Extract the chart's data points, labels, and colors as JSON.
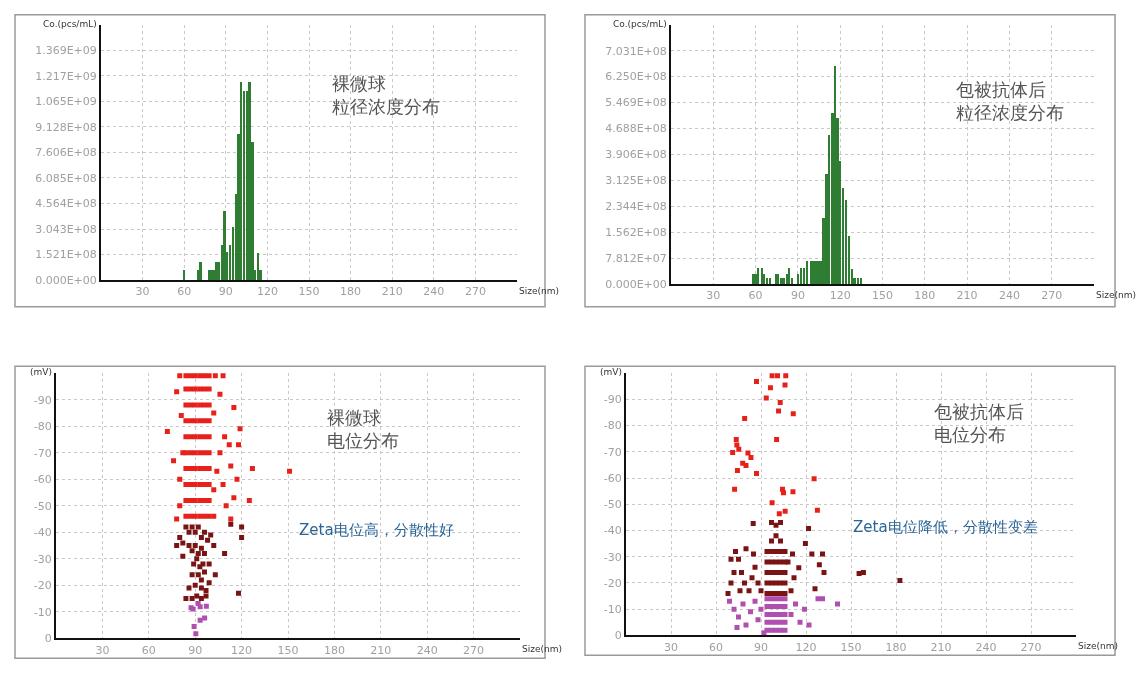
{
  "chart_data": [
    {
      "type": "bar",
      "title": "裸微球",
      "subtitle": "粒径浓度分布",
      "xlabel": "Size(nm)",
      "ylabel": "Co.(pcs/mL)",
      "color": "#2e7d32",
      "grid": true,
      "x": [
        60,
        70,
        72,
        78,
        79.7,
        81.3,
        83.5,
        85,
        87.3,
        89.2,
        91,
        93.3,
        95.4,
        97.4,
        99.3,
        101.2,
        103.1,
        105.3,
        107.2,
        109.4,
        111.3,
        113.4,
        115.3
      ],
      "values": [
        59000000.0,
        59000000.0,
        109000000.0,
        59000000.0,
        59000000.0,
        59000000.0,
        109000000.0,
        109000000.0,
        211000000.0,
        413000000.0,
        168000000.0,
        211000000.0,
        316000000.0,
        517000000.0,
        869000000.0,
        1183000000.0,
        1126000000.0,
        1126000000.0,
        1183000000.0,
        824000000.0,
        59000000.0,
        162000000.0,
        59000000.0
      ],
      "xlim": [
        0,
        300
      ],
      "xticks": [
        30,
        60,
        90,
        120,
        150,
        180,
        210,
        240,
        270
      ],
      "ylim": [
        0,
        1521000000.0
      ],
      "yticks": [
        {
          "value": 0,
          "label": "0.000E+00"
        },
        {
          "value": 152100000.0,
          "label": "1.521E+08"
        },
        {
          "value": 304300000.0,
          "label": "3.043E+08"
        },
        {
          "value": 456400000.0,
          "label": "4.564E+08"
        },
        {
          "value": 608500000.0,
          "label": "6.085E+08"
        },
        {
          "value": 760600000.0,
          "label": "7.606E+08"
        },
        {
          "value": 912800000.0,
          "label": "9.128E+08"
        },
        {
          "value": 1065000000.0,
          "label": "1.065E+09"
        },
        {
          "value": 1217000000.0,
          "label": "1.217E+09"
        },
        {
          "value": 1369000000.0,
          "label": "1.369E+09"
        }
      ]
    },
    {
      "type": "bar",
      "title": "包被抗体后",
      "subtitle": "粒径浓度分布",
      "xlabel": "Size(nm)",
      "ylabel": "Co.(pcs/mL)",
      "color": "#2e7d32",
      "grid": true,
      "x": [
        58.4,
        60.1,
        62,
        64.5,
        66.2,
        68.1,
        70.3,
        74.5,
        76.2,
        78.6,
        80.5,
        82.5,
        83.9,
        86.1,
        90.3,
        92.5,
        94.4,
        96.8,
        99.8,
        102,
        104,
        106.3,
        108.3,
        110.5,
        112.4,
        114.6,
        116.5,
        118.2,
        120.2,
        122.1,
        124.3,
        126.3,
        128.5,
        130.4,
        132.6,
        134.8
      ],
      "values": [
        31000000.0,
        31000000.0,
        48000000.0,
        48000000.0,
        31000000.0,
        20000000.0,
        20000000.0,
        31000000.0,
        31000000.0,
        20000000.0,
        20000000.0,
        31000000.0,
        48000000.0,
        20000000.0,
        31000000.0,
        48000000.0,
        48000000.0,
        70000000.0,
        70000000.0,
        70000000.0,
        70000000.0,
        70000000.0,
        201000000.0,
        332000000.0,
        449000000.0,
        515000000.0,
        658000000.0,
        500000000.0,
        370000000.0,
        291000000.0,
        253000000.0,
        147000000.0,
        47000000.0,
        20000000.0,
        20000000.0,
        20000000.0
      ],
      "xlim": [
        0,
        300
      ],
      "xticks": [
        30,
        60,
        90,
        120,
        150,
        180,
        210,
        240,
        270
      ],
      "ylim": [
        0,
        781200000.0
      ],
      "yticks": [
        {
          "value": 0,
          "label": "0.000E+00"
        },
        {
          "value": 78120000.0,
          "label": "7.812E+07"
        },
        {
          "value": 156200000.0,
          "label": "1.562E+08"
        },
        {
          "value": 234400000.0,
          "label": "2.344E+08"
        },
        {
          "value": 312500000.0,
          "label": "3.125E+08"
        },
        {
          "value": 390600000.0,
          "label": "3.906E+08"
        },
        {
          "value": 468800000.0,
          "label": "4.688E+08"
        },
        {
          "value": 546900000.0,
          "label": "5.469E+08"
        },
        {
          "value": 625000000.0,
          "label": "6.250E+08"
        },
        {
          "value": 703100000.0,
          "label": "7.031E+08"
        }
      ]
    },
    {
      "type": "scatter",
      "title": "裸微球",
      "subtitle": "电位分布",
      "annotations": [
        "Zeta电位高，分散性好"
      ],
      "xlabel": "Size(nm)",
      "ylabel": "(mV)",
      "marker": "square",
      "grid": true,
      "series": [
        {
          "color": "#e8201a",
          "x": [
            84,
            87,
            90,
            93,
            96,
            99,
            84,
            87,
            90,
            93,
            96,
            99,
            84,
            87,
            90,
            93,
            96,
            99,
            84,
            87,
            90,
            93,
            96,
            99,
            84,
            87,
            90,
            93,
            96,
            99,
            84,
            87,
            90,
            93,
            96,
            99,
            84,
            87,
            90,
            93,
            96,
            99,
            84,
            87,
            90,
            93,
            96,
            99,
            84,
            87,
            90,
            93,
            96,
            99,
            84,
            87,
            90,
            93,
            96,
            99,
            80,
            103,
            108,
            78,
            72,
            76,
            80,
            80,
            78,
            102,
            104,
            106,
            109,
            115,
            119,
            118,
            112,
            113,
            108,
            110,
            115,
            113,
            125,
            127,
            151,
            117,
            102,
            106,
            102,
            82,
            81
          ],
          "values": [
            -46,
            -46,
            -46,
            -46,
            -46,
            -46,
            -52,
            -52,
            -52,
            -52,
            -52,
            -52,
            -58,
            -58,
            -58,
            -58,
            -58,
            -58,
            -64,
            -64,
            -64,
            -64,
            -64,
            -64,
            -70,
            -70,
            -70,
            -70,
            -70,
            -70,
            -76,
            -76,
            -76,
            -76,
            -76,
            -76,
            -82,
            -82,
            -82,
            -82,
            -82,
            -82,
            -88,
            -88,
            -88,
            -88,
            -88,
            -88,
            -94,
            -94,
            -94,
            -94,
            -94,
            -94,
            -99,
            -99,
            -99,
            -99,
            -99,
            -99,
            -99,
            -99,
            -99,
            -93,
            -78,
            -67,
            -60,
            -50,
            -45,
            -56,
            -63,
            -70,
            -76,
            -87,
            -79,
            -73,
            -73,
            -65,
            -58,
            -50,
            -53,
            -45,
            -52,
            -64,
            -63,
            -60,
            -85,
            -92,
            -46,
            -70,
            -84
          ]
        },
        {
          "color": "#7a1414",
          "x": [
            80,
            82,
            84,
            86,
            88,
            90,
            92,
            94,
            96,
            98,
            100,
            102,
            86,
            88,
            90,
            92,
            94,
            96,
            89,
            91,
            93,
            95,
            88,
            92,
            94,
            96,
            86,
            90,
            94,
            97,
            84,
            88,
            91,
            94,
            97,
            99,
            103,
            109,
            113,
            120,
            120,
            118,
            78,
            82,
            99
          ],
          "values": [
            -38,
            -36,
            -42,
            -40,
            -42,
            -40,
            -42,
            -38,
            -40,
            -37,
            -39,
            -35,
            -35,
            -33,
            -35,
            -32,
            -34,
            -32,
            -28,
            -30,
            -27,
            -28,
            -24,
            -24,
            -22,
            -25,
            -19,
            -20,
            -19,
            -18,
            -15,
            -15,
            -16,
            -15,
            -16,
            -21,
            -24,
            -32,
            -43,
            -42,
            -38,
            -17,
            -35,
            -31,
            -28
          ]
        },
        {
          "color": "#b04fb0",
          "x": [
            87.3,
            88.6,
            91.9,
            93.2,
            97.2,
            96.1,
            93.2,
            89.3,
            90.4
          ],
          "values": [
            -11.5,
            -11.1,
            -13.1,
            -11.9,
            -12.1,
            -7.7,
            -6.8,
            -4.5,
            -1.7
          ]
        }
      ],
      "xlim": [
        0,
        300
      ],
      "xticks": [
        30,
        60,
        90,
        120,
        150,
        180,
        210,
        240,
        270
      ],
      "ylim": [
        0,
        -100
      ],
      "yticks": [
        0,
        -10,
        -20,
        -30,
        -40,
        -50,
        -60,
        -70,
        -80,
        -90
      ]
    },
    {
      "type": "scatter",
      "title": "包被抗体后",
      "subtitle": "电位分布",
      "annotations": [
        "Zeta电位降低，分散性变差"
      ],
      "xlabel": "Size(nm)",
      "ylabel": "(mV)",
      "marker": "square",
      "grid": true,
      "series": [
        {
          "color": "#e8201a",
          "x": [
            97.4,
            101,
            106.5,
            87,
            96.3,
            106,
            93.5,
            102.8,
            101.7,
            111.5,
            79.1,
            100.4,
            73.5,
            73.9,
            75.2,
            71.1,
            81.3,
            83.3,
            77.8,
            80,
            74.3,
            87,
            125.4,
            72.4,
            104.3,
            105,
            111.3,
            97.4,
            127.6,
            106.1,
            102.2
          ],
          "values": [
            -99,
            -99,
            -99,
            -96.8,
            -94.4,
            -95.5,
            -90.5,
            -88.8,
            -85.6,
            -84.5,
            -82.7,
            -74.7,
            -74.7,
            -72.6,
            -71,
            -69.7,
            -69.5,
            -67.8,
            -65.6,
            -64.8,
            -62.9,
            -61.7,
            -59.7,
            -55.7,
            -55.7,
            -54.4,
            -54.8,
            -50.6,
            -47.7,
            -47.3,
            -46.4
          ]
        },
        {
          "color": "#7a1414",
          "x": [
            94,
            97,
            100,
            103,
            106,
            94,
            97,
            100,
            103,
            106,
            94,
            97,
            100,
            103,
            106,
            94,
            97,
            100,
            103,
            106,
            94,
            97,
            100,
            103,
            106,
            97,
            100,
            103,
            100,
            97,
            103,
            68,
            70,
            72,
            70,
            73,
            75,
            77,
            79,
            82,
            84,
            86,
            88,
            90,
            80,
            85,
            76,
            110,
            112,
            108,
            111,
            155.4,
            158.3,
            182.6,
            123.9,
            131,
            132,
            121.7,
            84.8,
            119.6,
            128.9,
            115.2,
            126
          ],
          "values": [
            -16,
            -16,
            -16,
            -16,
            -16,
            -20,
            -20,
            -20,
            -20,
            -20,
            -24,
            -24,
            -24,
            -24,
            -24,
            -28,
            -28,
            -28,
            -28,
            -28,
            -32,
            -32,
            -32,
            -32,
            -32,
            -36,
            -38,
            -36,
            -42,
            -43,
            -43,
            -16,
            -20,
            -24,
            -29,
            -32,
            -29,
            -24,
            -20,
            -17,
            -22,
            -26,
            -20,
            -17,
            -33,
            -31,
            -17,
            -17,
            -22,
            -28,
            -31,
            -23.6,
            -24,
            -20.9,
            -31,
            -31,
            -24,
            -40.8,
            -42.7,
            -35,
            -26.9,
            -25.8,
            -17.8
          ]
        },
        {
          "color": "#b04fb0",
          "x": [
            94,
            97,
            100,
            103,
            106,
            94,
            97,
            100,
            103,
            106,
            94,
            97,
            100,
            103,
            106,
            94,
            97,
            100,
            103,
            106,
            94,
            97,
            100,
            103,
            106,
            69,
            72,
            75,
            78,
            80,
            83,
            86,
            88,
            90,
            74,
            110,
            113,
            116,
            119,
            122,
            128,
            131,
            141,
            92
          ],
          "values": [
            -2,
            -2,
            -2,
            -2,
            -2,
            -5,
            -5,
            -5,
            -5,
            -5,
            -8,
            -8,
            -8,
            -8,
            -8,
            -11,
            -11,
            -11,
            -11,
            -11,
            -14,
            -14,
            -14,
            -14,
            -14,
            -13,
            -10,
            -7,
            -12,
            -4,
            -9,
            -13,
            -6,
            -10,
            -3,
            -8,
            -12,
            -5,
            -10,
            -4,
            -14,
            -14,
            -12,
            -1
          ]
        }
      ],
      "xlim": [
        0,
        300
      ],
      "xticks": [
        30,
        60,
        90,
        120,
        150,
        180,
        210,
        240,
        270
      ],
      "ylim": [
        0,
        -100
      ],
      "yticks": [
        0,
        -10,
        -20,
        -30,
        -40,
        -50,
        -60,
        -70,
        -80,
        -90
      ]
    }
  ]
}
